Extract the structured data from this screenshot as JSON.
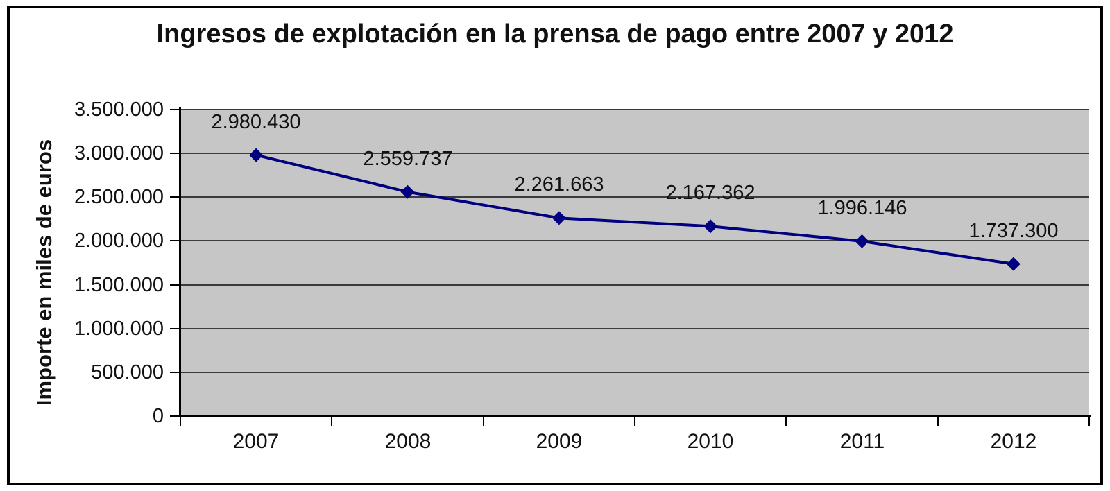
{
  "chart_data": {
    "type": "line",
    "title": "Ingresos de explotación en la prensa de pago entre 2007 y 2012",
    "ylabel": "Importe en miles de euros",
    "xlabel": "",
    "categories": [
      "2007",
      "2008",
      "2009",
      "2010",
      "2011",
      "2012"
    ],
    "series": [
      {
        "name": "Ingresos de explotación",
        "values": [
          2980430,
          2559737,
          2261663,
          2167362,
          1996146,
          1737300
        ],
        "data_labels": [
          "2.980.430",
          "2.559.737",
          "2.261.663",
          "2.167.362",
          "1.996.146",
          "1.737.300"
        ]
      }
    ],
    "ylim": [
      0,
      3500000
    ],
    "ytick_step": 500000,
    "yticks": [
      {
        "value": 3500000,
        "label": "3.500.000"
      },
      {
        "value": 3000000,
        "label": "3.000.000"
      },
      {
        "value": 2500000,
        "label": "2.500.000"
      },
      {
        "value": 2000000,
        "label": "2.000.000"
      },
      {
        "value": 1500000,
        "label": "1.500.000"
      },
      {
        "value": 1000000,
        "label": "1.000.000"
      },
      {
        "value": 500000,
        "label": "500.000"
      },
      {
        "value": 0,
        "label": "0"
      }
    ],
    "grid": "horizontal",
    "legend": "none",
    "marker": "diamond",
    "colors": {
      "series_line": "#000080",
      "marker_fill": "#000080",
      "plot_background": "#c6c6c6",
      "gridline": "#3b3b3b",
      "axis": "#000000",
      "text": "#111111",
      "frame_border": "#000000",
      "background": "#ffffff"
    }
  }
}
